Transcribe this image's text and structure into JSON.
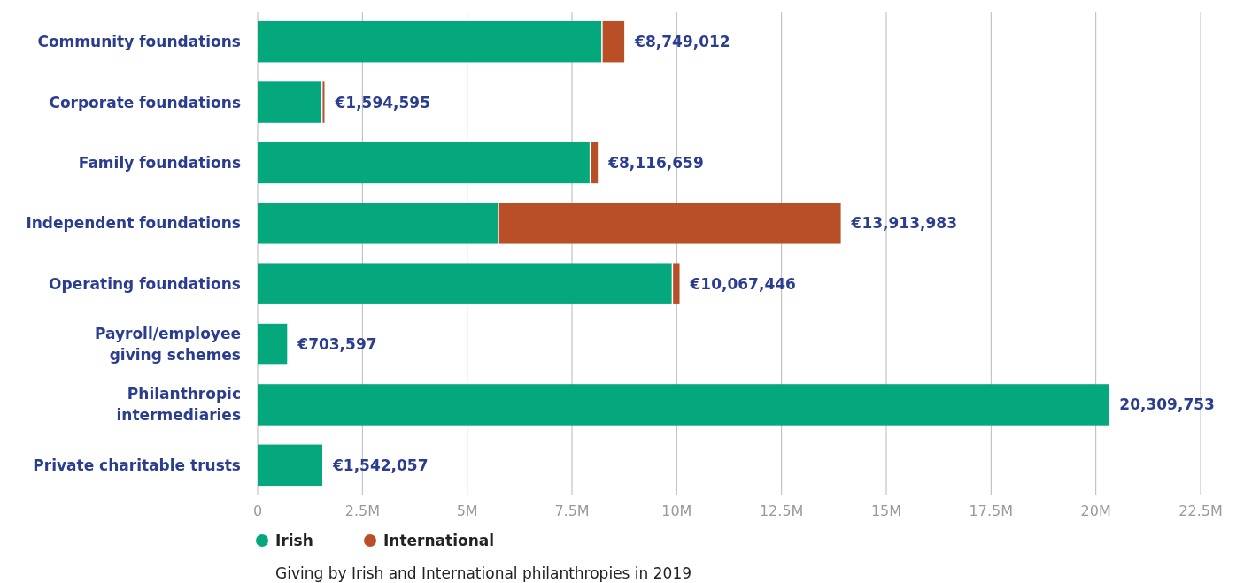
{
  "chart_data": {
    "type": "bar",
    "orientation": "horizontal",
    "stacked": true,
    "title": "Giving by Irish and International philanthropies in 2019",
    "categories": [
      "Community foundations",
      "Corporate foundations",
      "Family foundations",
      "Independent foundations",
      "Operating foundations",
      "Payroll/employee giving schemes",
      "Philanthropic intermediaries",
      "Private charitable trusts"
    ],
    "series": [
      {
        "name": "Irish",
        "color": "#05a87d",
        "values": [
          8200000,
          1520000,
          7920000,
          5730000,
          9880000,
          703597,
          20309753,
          1542057
        ]
      },
      {
        "name": "International",
        "color": "#b84f27",
        "values": [
          549012,
          74595,
          196659,
          8183983,
          187446,
          0,
          0,
          0
        ]
      }
    ],
    "totals": [
      "€8,749,012",
      "€1,594,595",
      "€8,116,659",
      "€13,913,983",
      "€10,067,446",
      "€703,597",
      "20,309,753",
      "€1,542,057"
    ],
    "xlim": [
      0,
      22500000
    ],
    "xticks": [
      0,
      {
        "value": 2500000,
        "label": "2.5M"
      },
      {
        "value": 5000000,
        "label": "5M"
      },
      {
        "value": 7500000,
        "label": "7.5M"
      },
      {
        "value": 10000000,
        "label": "10M"
      },
      {
        "value": 12500000,
        "label": "12.5M"
      },
      {
        "value": 15000000,
        "label": "15M"
      },
      {
        "value": 17500000,
        "label": "17.5M"
      },
      {
        "value": 20000000,
        "label": "20M"
      },
      {
        "value": 22500000,
        "label": "22.5M"
      }
    ],
    "grid": "x",
    "legend": "bottom left"
  }
}
